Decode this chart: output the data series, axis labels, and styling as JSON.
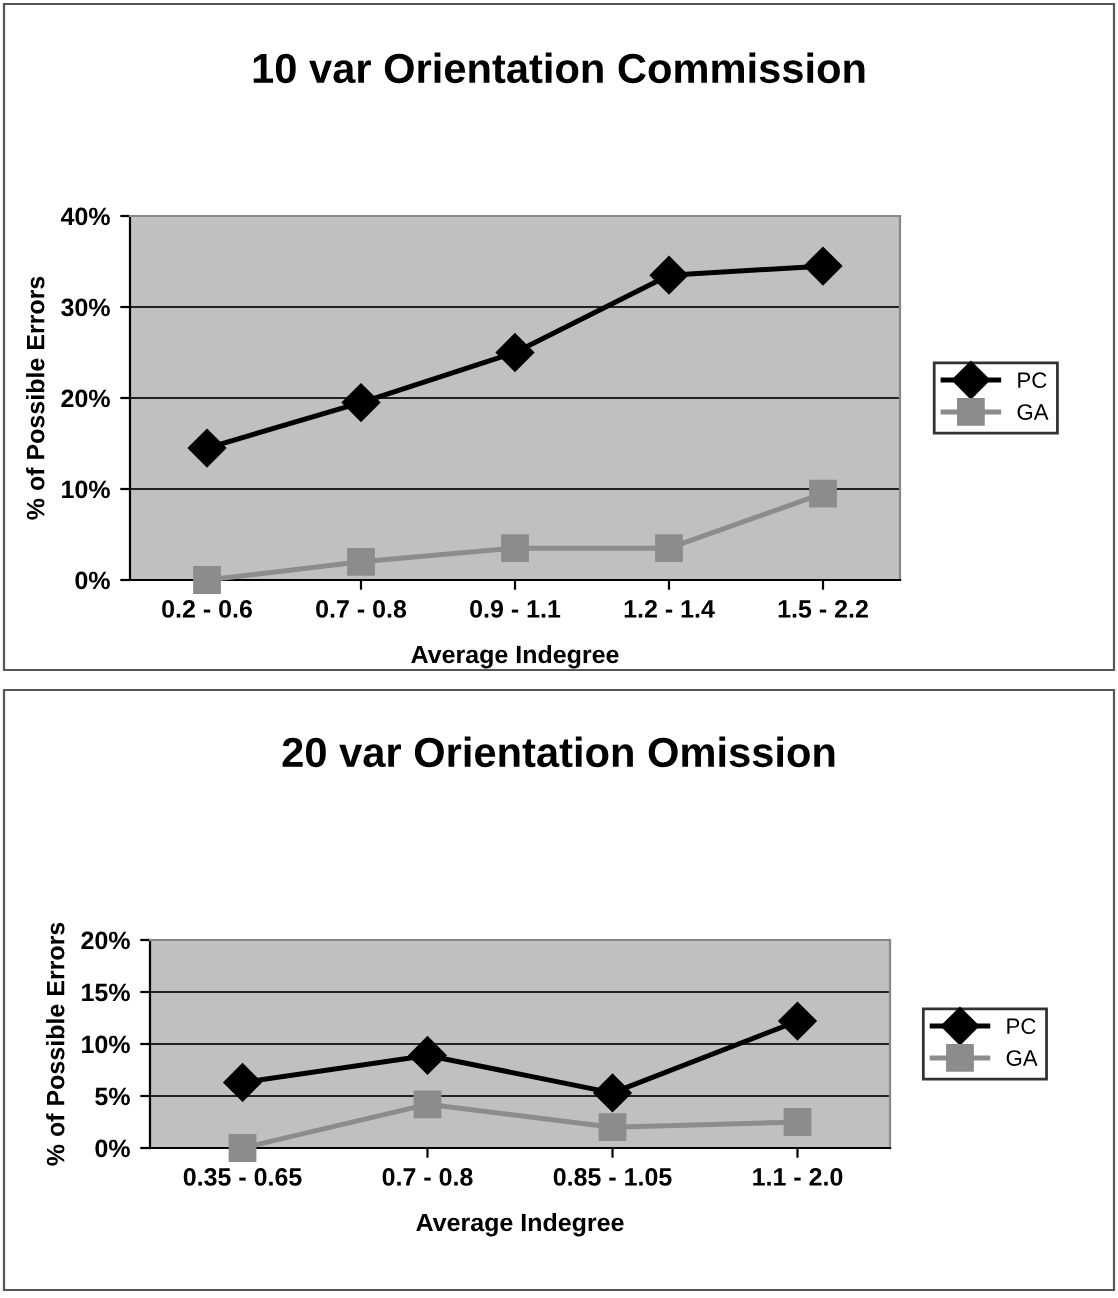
{
  "chart_data": [
    {
      "type": "line",
      "title": "10 var Orientation Commission",
      "xlabel": "Average Indegree",
      "ylabel": "% of Possible Errors",
      "categories": [
        "0.2 - 0.6",
        "0.7 - 0.8",
        "0.9 - 1.1",
        "1.2 - 1.4",
        "1.5 - 2.2"
      ],
      "series": [
        {
          "name": "PC",
          "color": "#000000",
          "marker": "diamond",
          "values": [
            14.5,
            19.5,
            25,
            33.5,
            34.5
          ]
        },
        {
          "name": "GA",
          "color": "#8c8c8c",
          "marker": "square",
          "values": [
            0,
            2,
            3.5,
            3.5,
            9.5
          ]
        }
      ],
      "ylim": [
        0,
        40
      ],
      "yticks": [
        {
          "value": 0,
          "label": "0%"
        },
        {
          "value": 10,
          "label": "10%"
        },
        {
          "value": 20,
          "label": "20%"
        },
        {
          "value": 30,
          "label": "30%"
        },
        {
          "value": 40,
          "label": "40%"
        }
      ],
      "grid": "y",
      "legend": "right"
    },
    {
      "type": "line",
      "title": "20 var Orientation Omission",
      "xlabel": "Average Indegree",
      "ylabel": "% of Possible Errors",
      "categories": [
        "0.35 - 0.65",
        "0.7 - 0.8",
        "0.85 - 1.05",
        "1.1 - 2.0"
      ],
      "series": [
        {
          "name": "PC",
          "color": "#000000",
          "marker": "diamond",
          "values": [
            6.3,
            8.9,
            5.3,
            12.2
          ]
        },
        {
          "name": "GA",
          "color": "#8c8c8c",
          "marker": "square",
          "values": [
            0,
            4.2,
            2,
            2.5
          ]
        }
      ],
      "ylim": [
        0,
        20
      ],
      "yticks": [
        {
          "value": 0,
          "label": "0%"
        },
        {
          "value": 5,
          "label": "5%"
        },
        {
          "value": 10,
          "label": "10%"
        },
        {
          "value": 15,
          "label": "15%"
        },
        {
          "value": 20,
          "label": "20%"
        }
      ],
      "grid": "y",
      "legend": "right"
    }
  ]
}
